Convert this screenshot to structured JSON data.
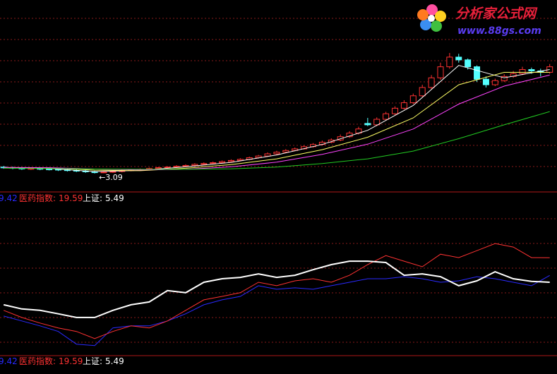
{
  "chart_data": [
    {
      "type": "candlestick",
      "xlim": [
        -0.4,
        60.8
      ],
      "ylim": [
        2.6,
        8.6
      ],
      "up_color": "#ff3232",
      "down_color": "#54ffff",
      "ohlc": [
        [
          3.32,
          3.36,
          3.26,
          3.3
        ],
        [
          3.3,
          3.34,
          3.24,
          3.28
        ],
        [
          3.28,
          3.32,
          3.22,
          3.26
        ],
        [
          3.26,
          3.31,
          3.22,
          3.27
        ],
        [
          3.27,
          3.31,
          3.21,
          3.25
        ],
        [
          3.25,
          3.29,
          3.2,
          3.24
        ],
        [
          3.24,
          3.28,
          3.18,
          3.22
        ],
        [
          3.22,
          3.26,
          3.16,
          3.2
        ],
        [
          3.2,
          3.24,
          3.14,
          3.18
        ],
        [
          3.18,
          3.22,
          3.11,
          3.15
        ],
        [
          3.15,
          3.19,
          3.09,
          3.12
        ],
        [
          3.12,
          3.18,
          3.1,
          3.14
        ],
        [
          3.14,
          3.2,
          3.11,
          3.16
        ],
        [
          3.16,
          3.23,
          3.13,
          3.2
        ],
        [
          3.2,
          3.25,
          3.17,
          3.22
        ],
        [
          3.22,
          3.27,
          3.19,
          3.24
        ],
        [
          3.24,
          3.3,
          3.21,
          3.27
        ],
        [
          3.27,
          3.33,
          3.24,
          3.3
        ],
        [
          3.3,
          3.35,
          3.27,
          3.32
        ],
        [
          3.32,
          3.39,
          3.29,
          3.35
        ],
        [
          3.35,
          3.42,
          3.32,
          3.38
        ],
        [
          3.38,
          3.46,
          3.35,
          3.42
        ],
        [
          3.42,
          3.49,
          3.39,
          3.45
        ],
        [
          3.45,
          3.52,
          3.42,
          3.48
        ],
        [
          3.48,
          3.56,
          3.45,
          3.52
        ],
        [
          3.52,
          3.6,
          3.49,
          3.56
        ],
        [
          3.56,
          3.64,
          3.53,
          3.6
        ],
        [
          3.6,
          3.7,
          3.57,
          3.66
        ],
        [
          3.66,
          3.76,
          3.63,
          3.72
        ],
        [
          3.72,
          3.85,
          3.69,
          3.8
        ],
        [
          3.8,
          3.91,
          3.77,
          3.86
        ],
        [
          3.86,
          3.97,
          3.83,
          3.92
        ],
        [
          3.92,
          4.03,
          3.89,
          3.98
        ],
        [
          3.98,
          4.11,
          3.95,
          4.06
        ],
        [
          4.06,
          4.19,
          4.02,
          4.14
        ],
        [
          4.14,
          4.28,
          4.1,
          4.22
        ],
        [
          4.22,
          4.36,
          4.18,
          4.3
        ],
        [
          4.3,
          4.5,
          4.26,
          4.42
        ],
        [
          4.42,
          4.62,
          4.38,
          4.55
        ],
        [
          4.55,
          4.78,
          4.5,
          4.7
        ],
        [
          4.9,
          5.1,
          4.8,
          4.85
        ],
        [
          4.85,
          5.12,
          4.8,
          5.05
        ],
        [
          5.05,
          5.32,
          5.0,
          5.25
        ],
        [
          5.25,
          5.52,
          5.2,
          5.45
        ],
        [
          5.45,
          5.74,
          5.4,
          5.65
        ],
        [
          5.65,
          5.98,
          5.6,
          5.9
        ],
        [
          5.9,
          6.3,
          5.85,
          6.2
        ],
        [
          6.2,
          6.65,
          6.12,
          6.55
        ],
        [
          6.55,
          7.1,
          6.48,
          6.95
        ],
        [
          6.95,
          7.45,
          6.88,
          7.3
        ],
        [
          7.3,
          7.42,
          7.1,
          7.2
        ],
        [
          7.2,
          7.25,
          6.85,
          6.95
        ],
        [
          6.95,
          7.0,
          6.4,
          6.5
        ],
        [
          6.5,
          6.6,
          6.2,
          6.3
        ],
        [
          6.3,
          6.52,
          6.25,
          6.45
        ],
        [
          6.45,
          6.68,
          6.4,
          6.6
        ],
        [
          6.6,
          6.8,
          6.55,
          6.7
        ],
        [
          6.7,
          6.95,
          6.65,
          6.85
        ],
        [
          6.85,
          6.92,
          6.7,
          6.8
        ],
        [
          6.8,
          6.88,
          6.6,
          6.75
        ],
        [
          6.75,
          7.05,
          6.7,
          6.95
        ]
      ],
      "overlays": {
        "x": [
          0,
          5,
          10,
          15,
          20,
          25,
          30,
          35,
          40,
          45,
          50,
          55,
          60
        ],
        "series": [
          {
            "color": "#ffffff",
            "values": [
              3.3,
              3.27,
              3.16,
              3.2,
              3.33,
              3.49,
              3.76,
              4.14,
              4.65,
              5.55,
              7.0,
              6.55,
              6.85
            ]
          },
          {
            "color": "#ffff66",
            "values": [
              3.3,
              3.29,
              3.21,
              3.19,
              3.28,
              3.41,
              3.62,
              3.95,
              4.4,
              5.1,
              6.3,
              6.75,
              6.75
            ]
          },
          {
            "color": "#ff44ff",
            "values": [
              3.31,
              3.3,
              3.25,
              3.22,
              3.24,
              3.33,
              3.5,
              3.78,
              4.15,
              4.7,
              5.6,
              6.25,
              6.65
            ]
          },
          {
            "color": "#22cc22",
            "values": [
              3.28,
              3.27,
              3.25,
              3.24,
              3.24,
              3.26,
              3.32,
              3.45,
              3.62,
              3.9,
              4.35,
              4.85,
              5.33
            ]
          }
        ]
      },
      "annotations": [
        {
          "x": 10,
          "y": 3.09,
          "text": "←3.09"
        }
      ]
    },
    {
      "type": "line",
      "xlim": [
        -0.4,
        60.8
      ],
      "ylim": [
        -37,
        50
      ],
      "x": [
        0,
        2,
        4,
        6,
        8,
        10,
        12,
        14,
        16,
        18,
        20,
        22,
        24,
        26,
        28,
        30,
        32,
        34,
        36,
        38,
        40,
        42,
        44,
        46,
        48,
        50,
        52,
        54,
        56,
        58,
        60
      ],
      "series": [
        {
          "color": "#2a2aff",
          "line_width": 1,
          "values": [
            -13.9,
            -16.7,
            -19.5,
            -22.7,
            -30.0,
            -30.8,
            -20.7,
            -19.5,
            -19.5,
            -16.7,
            -12.6,
            -7.4,
            -4.6,
            -2.6,
            3.5,
            1.5,
            2.3,
            1.5,
            3.5,
            5.5,
            7.5,
            7.5,
            8.7,
            7.5,
            5.5,
            6.3,
            8.7,
            7.5,
            5.5,
            3.5,
            9.42
          ]
        },
        {
          "name": "医药指数:",
          "color": "#ff3232",
          "line_width": 1,
          "values": [
            -10.6,
            -14.7,
            -17.9,
            -20.7,
            -22.7,
            -26.8,
            -22.7,
            -19.5,
            -20.7,
            -16.7,
            -10.6,
            -4.6,
            -2.6,
            -0.5,
            5.5,
            3.5,
            6.3,
            7.5,
            5.5,
            9.5,
            15.6,
            20.8,
            17.6,
            14.4,
            21.6,
            19.6,
            23.6,
            27.7,
            25.7,
            19.6,
            19.59
          ]
        },
        {
          "name": "上证:",
          "color": "#ffffff",
          "line_width": 2,
          "values": [
            -7.4,
            -9.8,
            -10.6,
            -12.6,
            -14.7,
            -14.7,
            -10.6,
            -7.4,
            -5.8,
            0.7,
            -0.5,
            5.5,
            7.5,
            8.3,
            10.3,
            8.3,
            9.5,
            12.7,
            15.6,
            17.6,
            17.6,
            16.8,
            9.5,
            10.3,
            8.7,
            3.5,
            6.3,
            11.5,
            7.5,
            6.0,
            5.49
          ]
        }
      ]
    }
  ],
  "watermark": {
    "title": "分析家公式网",
    "url": "www.88gs.com"
  }
}
